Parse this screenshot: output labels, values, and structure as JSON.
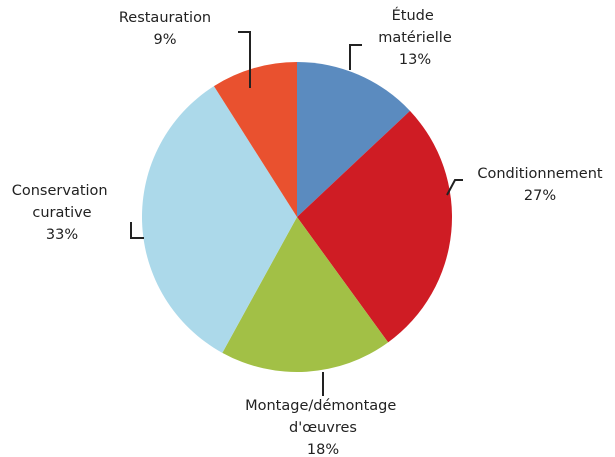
{
  "chart_data": {
    "type": "pie",
    "categories": [
      "Étude matérielle",
      "Conditionnement",
      "Montage/démontage d'œuvres",
      "Conservation curative",
      "Restauration"
    ],
    "values": [
      13,
      27,
      18,
      33,
      9
    ],
    "value_labels": [
      "13%",
      "27%",
      "18%",
      "33%",
      "9%"
    ],
    "colors": [
      "#5b8bbf",
      "#cf1c24",
      "#a2c046",
      "#acd9ea",
      "#e9512f"
    ]
  }
}
